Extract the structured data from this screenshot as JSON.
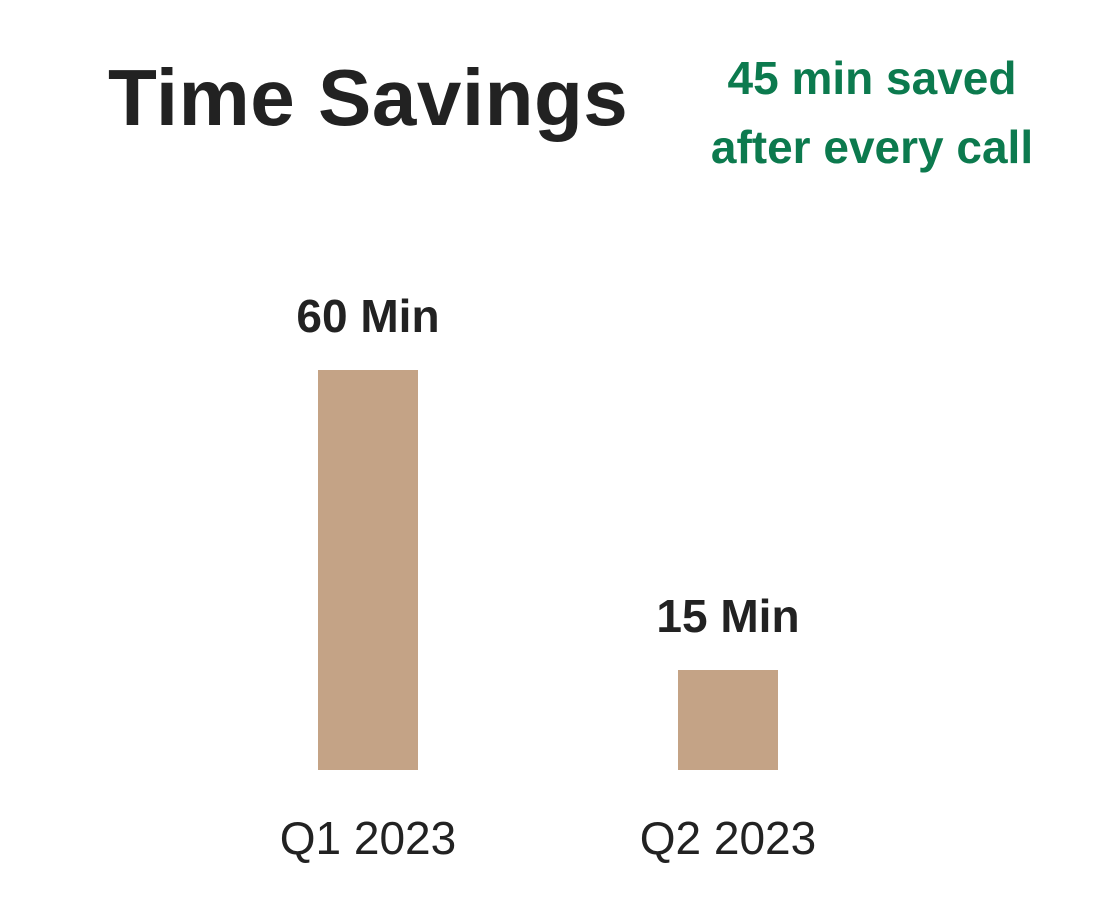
{
  "header": {
    "title": "Time Savings",
    "callout_line1": "45 min saved",
    "callout_line2": "after every call"
  },
  "colors": {
    "bar": "#c4a386",
    "title": "#222222",
    "callout": "#0c7a4e",
    "label": "#222222"
  },
  "chart_data": {
    "type": "bar",
    "title": "Time Savings",
    "categories": [
      "Q1 2023",
      "Q2 2023"
    ],
    "values": [
      60,
      15
    ],
    "data_labels": [
      "60 Min",
      "15 Min"
    ],
    "xlabel": "",
    "ylabel": "",
    "ylim": [
      0,
      60
    ],
    "grid": false,
    "legend": "none"
  }
}
